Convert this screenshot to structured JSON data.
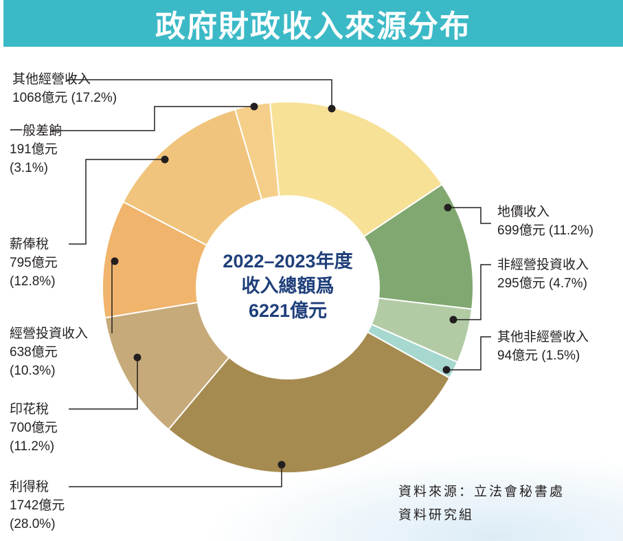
{
  "title": "政府財政收入來源分布",
  "chart_data": {
    "type": "pie",
    "donut": true,
    "center_text": [
      "2022–2023年度",
      "收入總額爲",
      "6221億元"
    ],
    "unit": "億元",
    "slices": [
      {
        "name": "其他經營收入",
        "value": 1068,
        "percent": 17.2,
        "value_label": "1068億元 (17.2%)",
        "color": "#f7e197"
      },
      {
        "name": "地價收入",
        "value": 699,
        "percent": 11.2,
        "value_label": "699億元 (11.2%)",
        "color": "#80a870"
      },
      {
        "name": "非經營投資收入",
        "value": 295,
        "percent": 4.7,
        "value_label": "295億元 (4.7%)",
        "color": "#b2cba4"
      },
      {
        "name": "其他非經營收入",
        "value": 94,
        "percent": 1.5,
        "value_label": "94億元 (1.5%)",
        "color": "#a6d8cf"
      },
      {
        "name": "利得稅",
        "value": 1742,
        "percent": 28.0,
        "value_label": "1742億元",
        "value_label2": "(28.0%)",
        "color": "#a68b50"
      },
      {
        "name": "印花稅",
        "value": 700,
        "percent": 11.2,
        "value_label": "700億元",
        "value_label2": "(11.2%)",
        "color": "#c6aa7a"
      },
      {
        "name": "經營投資收入",
        "value": 638,
        "percent": 10.3,
        "value_label": "638億元",
        "value_label2": "(10.3%)",
        "color": "#f0b46c"
      },
      {
        "name": "薪俸稅",
        "value": 795,
        "percent": 12.8,
        "value_label": "795億元",
        "value_label2": "(12.8%)",
        "color": "#f0c47c"
      },
      {
        "name": "一般差餉",
        "value": 191,
        "percent": 3.1,
        "value_label": "191億元",
        "value_label2": "(3.1%)",
        "color": "#f5cf8a"
      }
    ]
  },
  "source": [
    "資料來源：立法會秘書處",
    "資料研究組"
  ]
}
